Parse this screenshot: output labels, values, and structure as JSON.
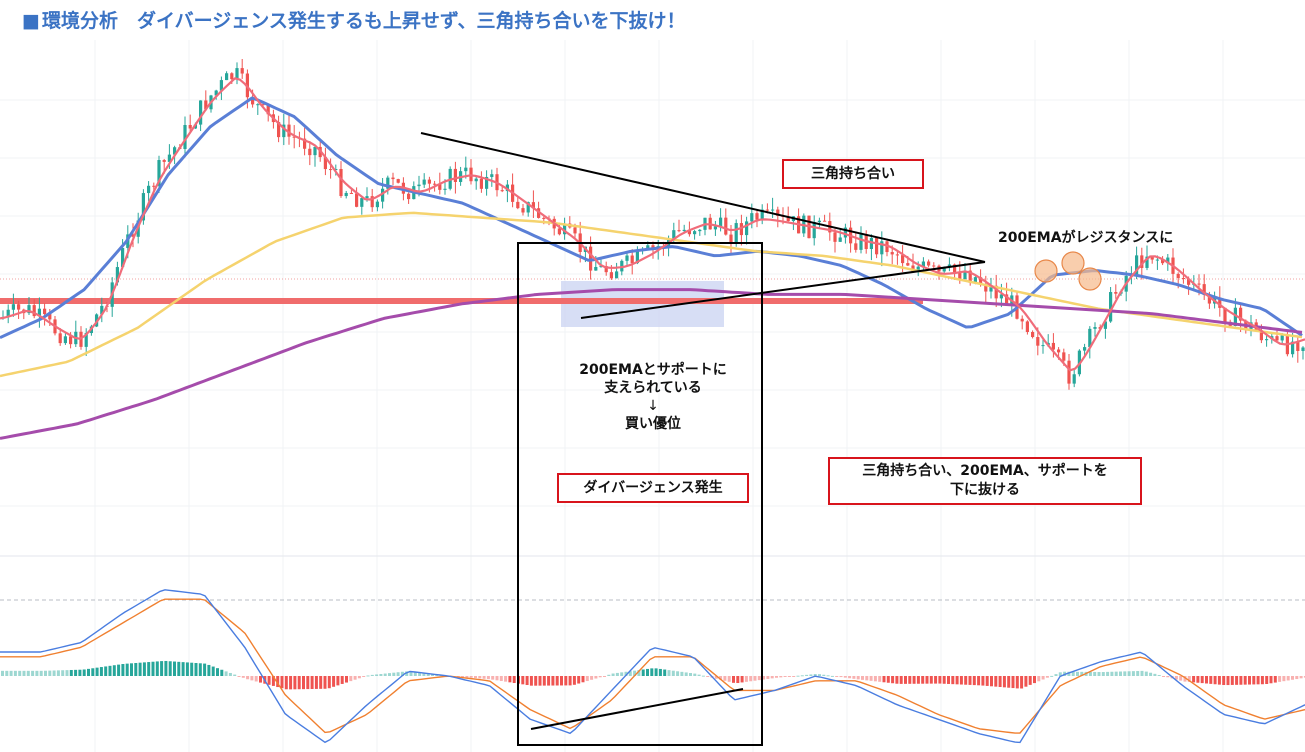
{
  "header": {
    "title_marker": "■",
    "title": "環境分析　ダイバージェンス発生するも上昇せず、三角持ち合いを下抜け！"
  },
  "annotations": {
    "triangle_box": "三角持ち合い",
    "resistance_note": "200EMAがレジスタンスに",
    "support_line1": "200EMAとサポートに",
    "support_line2": "支えられている",
    "support_arrow": "↓",
    "support_line3": "買い優位",
    "divergence_box": "ダイバージェンス発生",
    "breakdown_line1": "三角持ち合い、200EMA、サポートを",
    "breakdown_line2": "下に抜ける"
  },
  "colors": {
    "title": "#3b73c4",
    "bull_candle": "#26a69a",
    "bear_candle": "#ef5350",
    "ema_fast": "#f06c7a",
    "ema_mid": "#5a7fd6",
    "ema_slow": "#f5d36e",
    "ema_200": "#a54cab",
    "support_line": "#f06c6c",
    "support_zone": "#c9d3f2",
    "macd_line": "#4a7de0",
    "signal_line": "#f08030",
    "box_border": "#d8141c"
  },
  "chart_data": [
    {
      "type": "candlestick",
      "title": "",
      "series": [
        {
          "values": [
            0.42,
            0.44,
            0.4,
            0.37,
            0.45,
            0.6,
            0.72,
            0.8,
            0.88,
            0.93,
            0.85,
            0.8,
            0.78,
            0.7,
            0.66,
            0.7,
            0.68,
            0.71,
            0.72,
            0.7,
            0.66,
            0.62,
            0.58,
            0.52,
            0.53,
            0.56,
            0.6,
            0.62,
            0.6,
            0.63,
            0.62,
            0.61,
            0.6,
            0.58,
            0.57,
            0.53,
            0.51,
            0.52,
            0.48,
            0.44,
            0.36,
            0.3,
            0.4,
            0.5,
            0.56,
            0.52,
            0.47,
            0.43,
            0.4,
            0.36,
            0.38
          ]
        },
        {
          "name": "",
          "values": [
            0.38,
            0.42,
            0.48,
            0.58,
            0.72,
            0.82,
            0.88,
            0.84,
            0.76,
            0.7,
            0.68,
            0.66,
            0.62,
            0.58,
            0.54,
            0.56,
            0.57,
            0.55,
            0.56,
            0.55,
            0.53,
            0.49,
            0.44,
            0.4,
            0.43,
            0.51,
            0.52,
            0.51,
            0.49,
            0.46,
            0.44,
            0.38
          ]
        },
        {
          "name": "",
          "values": [
            0.3,
            0.33,
            0.4,
            0.5,
            0.58,
            0.63,
            0.64,
            0.63,
            0.62,
            0.6,
            0.58,
            0.56,
            0.55,
            0.53,
            0.5,
            0.47,
            0.44,
            0.42,
            0.4,
            0.38
          ]
        },
        {
          "name": "",
          "values": [
            0.17,
            0.2,
            0.25,
            0.31,
            0.37,
            0.42,
            0.45,
            0.47,
            0.48,
            0.48,
            0.47,
            0.47,
            0.46,
            0.45,
            0.44,
            0.43,
            0.41,
            0.39
          ]
        }
      ]
    },
    {
      "type": "line",
      "title": "",
      "series": [
        {
          "name": "",
          "values": [
            0.5,
            0.5,
            0.7,
            1.3,
            1.8,
            1.7,
            0.6,
            -0.8,
            -1.4,
            -0.6,
            0.1,
            0.0,
            -0.2,
            -0.9,
            -1.2,
            -0.3,
            0.6,
            0.4,
            -0.5,
            -0.3,
            0.0,
            -0.2,
            -0.6,
            -0.9,
            -1.2,
            -1.4,
            0.0,
            0.3,
            0.5,
            -0.2,
            -0.8,
            -1.0,
            -0.6
          ]
        },
        {
          "name": "",
          "values": [
            0.4,
            0.4,
            0.6,
            1.1,
            1.6,
            1.6,
            0.9,
            -0.4,
            -1.2,
            -0.8,
            -0.1,
            0.0,
            -0.1,
            -0.7,
            -1.1,
            -0.5,
            0.4,
            0.4,
            -0.3,
            -0.3,
            -0.1,
            -0.1,
            -0.4,
            -0.8,
            -1.1,
            -1.2,
            -0.2,
            0.2,
            0.4,
            0.0,
            -0.6,
            -0.9,
            -0.7
          ]
        }
      ]
    }
  ]
}
